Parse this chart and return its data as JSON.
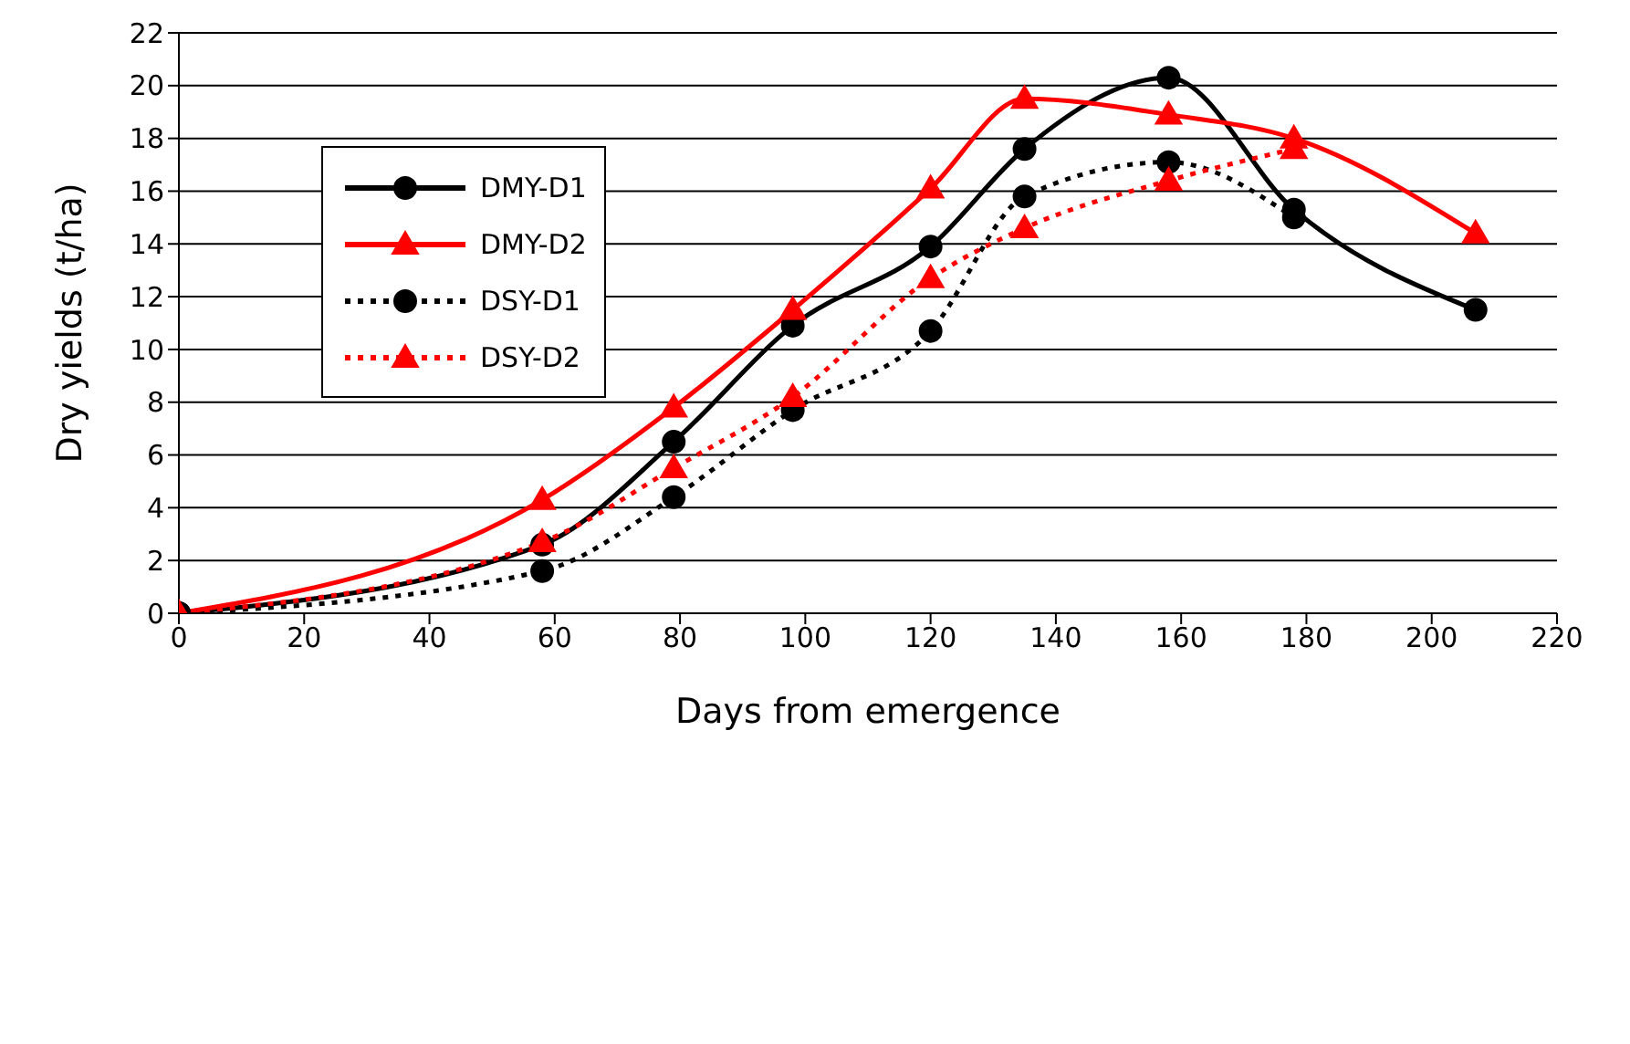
{
  "chart_data": {
    "type": "line",
    "xlabel": "Days from emergence",
    "ylabel": "Dry yields (t/ha)",
    "xlim": [
      0,
      220
    ],
    "xticks": [
      0,
      20,
      40,
      60,
      80,
      100,
      120,
      140,
      160,
      180,
      200,
      220
    ],
    "ylim": [
      0,
      22
    ],
    "yticks": [
      0,
      2,
      4,
      6,
      8,
      10,
      12,
      14,
      16,
      18,
      20,
      22
    ],
    "grid": "y",
    "legend": "top left",
    "series": [
      {
        "name": "DMY-D1",
        "color": "#000000",
        "marker": "circle",
        "line_style": "solid",
        "x": [
          0,
          58,
          79,
          98,
          120,
          135,
          158,
          178,
          207
        ],
        "values": [
          0,
          2.6,
          6.5,
          10.9,
          13.9,
          17.6,
          20.3,
          15.3,
          11.5
        ]
      },
      {
        "name": "DMY-D2",
        "color": "#ff0000",
        "marker": "triangle",
        "line_style": "solid",
        "x": [
          0,
          58,
          79,
          98,
          120,
          135,
          158,
          178,
          207
        ],
        "values": [
          0,
          4.3,
          7.8,
          11.5,
          16.1,
          19.5,
          18.9,
          18.0,
          14.4
        ]
      },
      {
        "name": "DSY-D1",
        "color": "#000000",
        "marker": "circle",
        "line_style": "dotted",
        "x": [
          0,
          58,
          79,
          98,
          120,
          135,
          158,
          178
        ],
        "values": [
          0,
          1.6,
          4.4,
          7.7,
          10.7,
          15.8,
          17.1,
          15.0
        ]
      },
      {
        "name": "DSY-D2",
        "color": "#ff0000",
        "marker": "triangle",
        "line_style": "dotted",
        "x": [
          0,
          58,
          79,
          98,
          120,
          135,
          158,
          178
        ],
        "values": [
          0,
          2.7,
          5.5,
          8.2,
          12.7,
          14.6,
          16.4,
          17.6
        ]
      }
    ]
  }
}
